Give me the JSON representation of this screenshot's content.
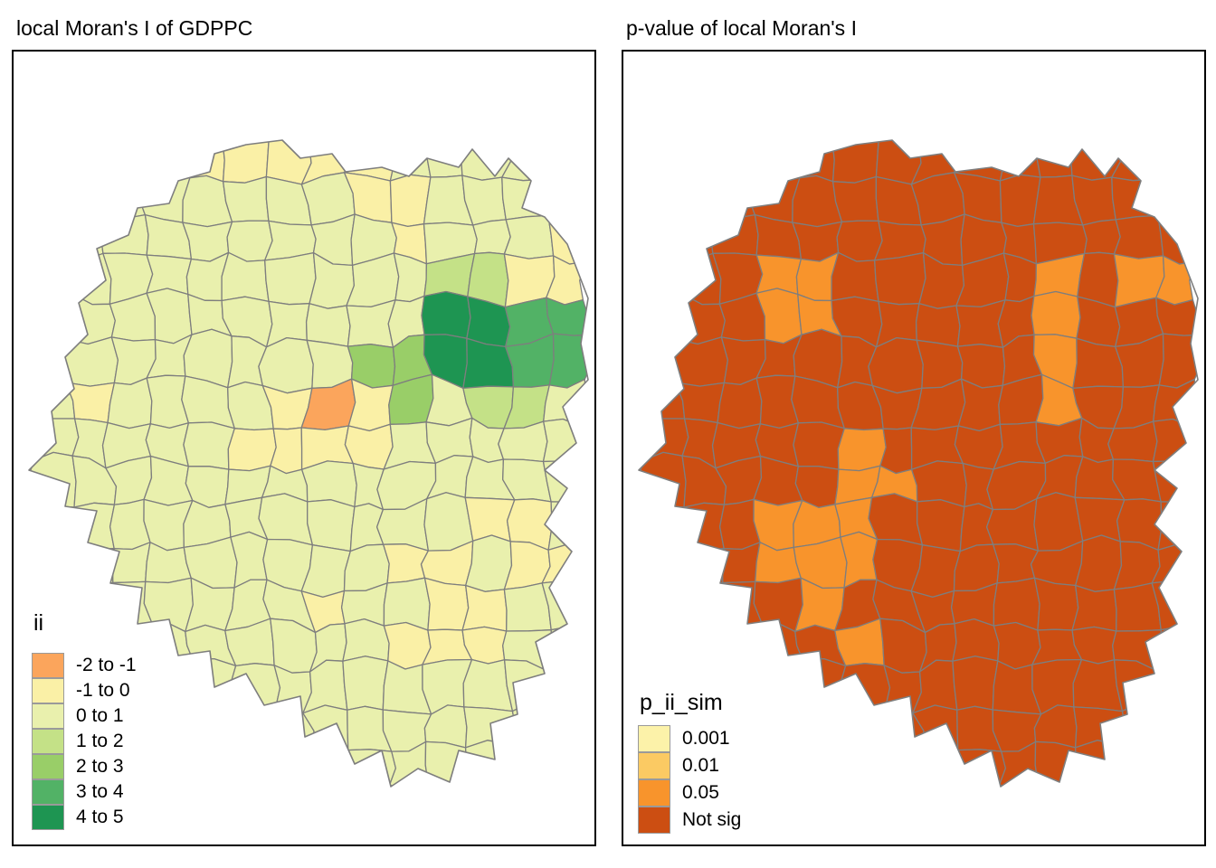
{
  "page": {
    "background": "#ffffff",
    "frame_color": "#000000",
    "boundary_color": "#7e7e7e"
  },
  "panels": [
    {
      "id": "moran-map",
      "title": "local Moran's I of GDPPC",
      "legend": {
        "title": "ii",
        "items": [
          {
            "label": "-2 to -1",
            "color": "#FBA55C"
          },
          {
            "label": "-1 to 0",
            "color": "#FAF0A6"
          },
          {
            "label": "0 to 1",
            "color": "#E9F0AD"
          },
          {
            "label": "1 to 2",
            "color": "#C4E187"
          },
          {
            "label": "2 to 3",
            "color": "#99CE68"
          },
          {
            "label": "3 to 4",
            "color": "#52B266"
          },
          {
            "label": "4 to 5",
            "color": "#1E9552"
          }
        ]
      },
      "map": {
        "default_class": "0 to 1",
        "regions": [
          {
            "class": "-2 to -1",
            "cells": [
              [
                7,
                6
              ]
            ]
          },
          {
            "class": "-1 to 0",
            "cells": [
              [
                4,
                0
              ],
              [
                5,
                0
              ],
              [
                6,
                0
              ],
              [
                7,
                0
              ],
              [
                8,
                0
              ],
              [
                8,
                1
              ],
              [
                9,
                1
              ],
              [
                9,
                2
              ],
              [
                13,
                2
              ],
              [
                12,
                3
              ],
              [
                13,
                3
              ],
              [
                1,
                6
              ],
              [
                6,
                6
              ],
              [
                8,
                6
              ],
              [
                5,
                7
              ],
              [
                6,
                7
              ],
              [
                7,
                7
              ],
              [
                8,
                7
              ],
              [
                11,
                9
              ],
              [
                12,
                9
              ],
              [
                9,
                10
              ],
              [
                10,
                10
              ],
              [
                12,
                10
              ],
              [
                13,
                10
              ],
              [
                10,
                11
              ],
              [
                11,
                11
              ],
              [
                7,
                11
              ],
              [
                9,
                12
              ],
              [
                10,
                12
              ],
              [
                11,
                12
              ]
            ]
          },
          {
            "class": "1 to 2",
            "cells": [
              [
                10,
                3
              ],
              [
                11,
                3
              ],
              [
                11,
                6
              ],
              [
                12,
                6
              ]
            ]
          },
          {
            "class": "2 to 3",
            "cells": [
              [
                8,
                5
              ],
              [
                9,
                5
              ],
              [
                9,
                6
              ]
            ]
          },
          {
            "class": "3 to 4",
            "cells": [
              [
                12,
                4
              ],
              [
                13,
                4
              ],
              [
                12,
                5
              ],
              [
                13,
                5
              ]
            ]
          },
          {
            "class": "4 to 5",
            "cells": [
              [
                10,
                4
              ],
              [
                11,
                4
              ],
              [
                10,
                5
              ],
              [
                11,
                5
              ]
            ]
          }
        ]
      }
    },
    {
      "id": "pvalue-map",
      "title": "p-value of local Moran's I",
      "legend": {
        "title": "p_ii_sim",
        "items": [
          {
            "label": "0.001",
            "color": "#FCF2A9"
          },
          {
            "label": "0.01",
            "color": "#FBCA63"
          },
          {
            "label": "0.05",
            "color": "#F8942C"
          },
          {
            "label": "Not sig",
            "color": "#CC4E12"
          }
        ]
      },
      "map": {
        "default_class": "Not sig",
        "regions": [
          {
            "class": "0.05",
            "cells": [
              [
                3,
                3
              ],
              [
                4,
                3
              ],
              [
                3,
                4
              ],
              [
                4,
                4
              ],
              [
                10,
                3
              ],
              [
                10,
                4
              ],
              [
                10,
                5
              ],
              [
                10,
                6
              ],
              [
                12,
                3
              ],
              [
                13,
                3
              ],
              [
                5,
                7
              ],
              [
                5,
                8
              ],
              [
                6,
                8
              ],
              [
                3,
                9
              ],
              [
                4,
                9
              ],
              [
                5,
                9
              ],
              [
                3,
                10
              ],
              [
                4,
                10
              ],
              [
                5,
                10
              ],
              [
                4,
                11
              ],
              [
                5,
                12
              ]
            ]
          }
        ]
      }
    }
  ]
}
